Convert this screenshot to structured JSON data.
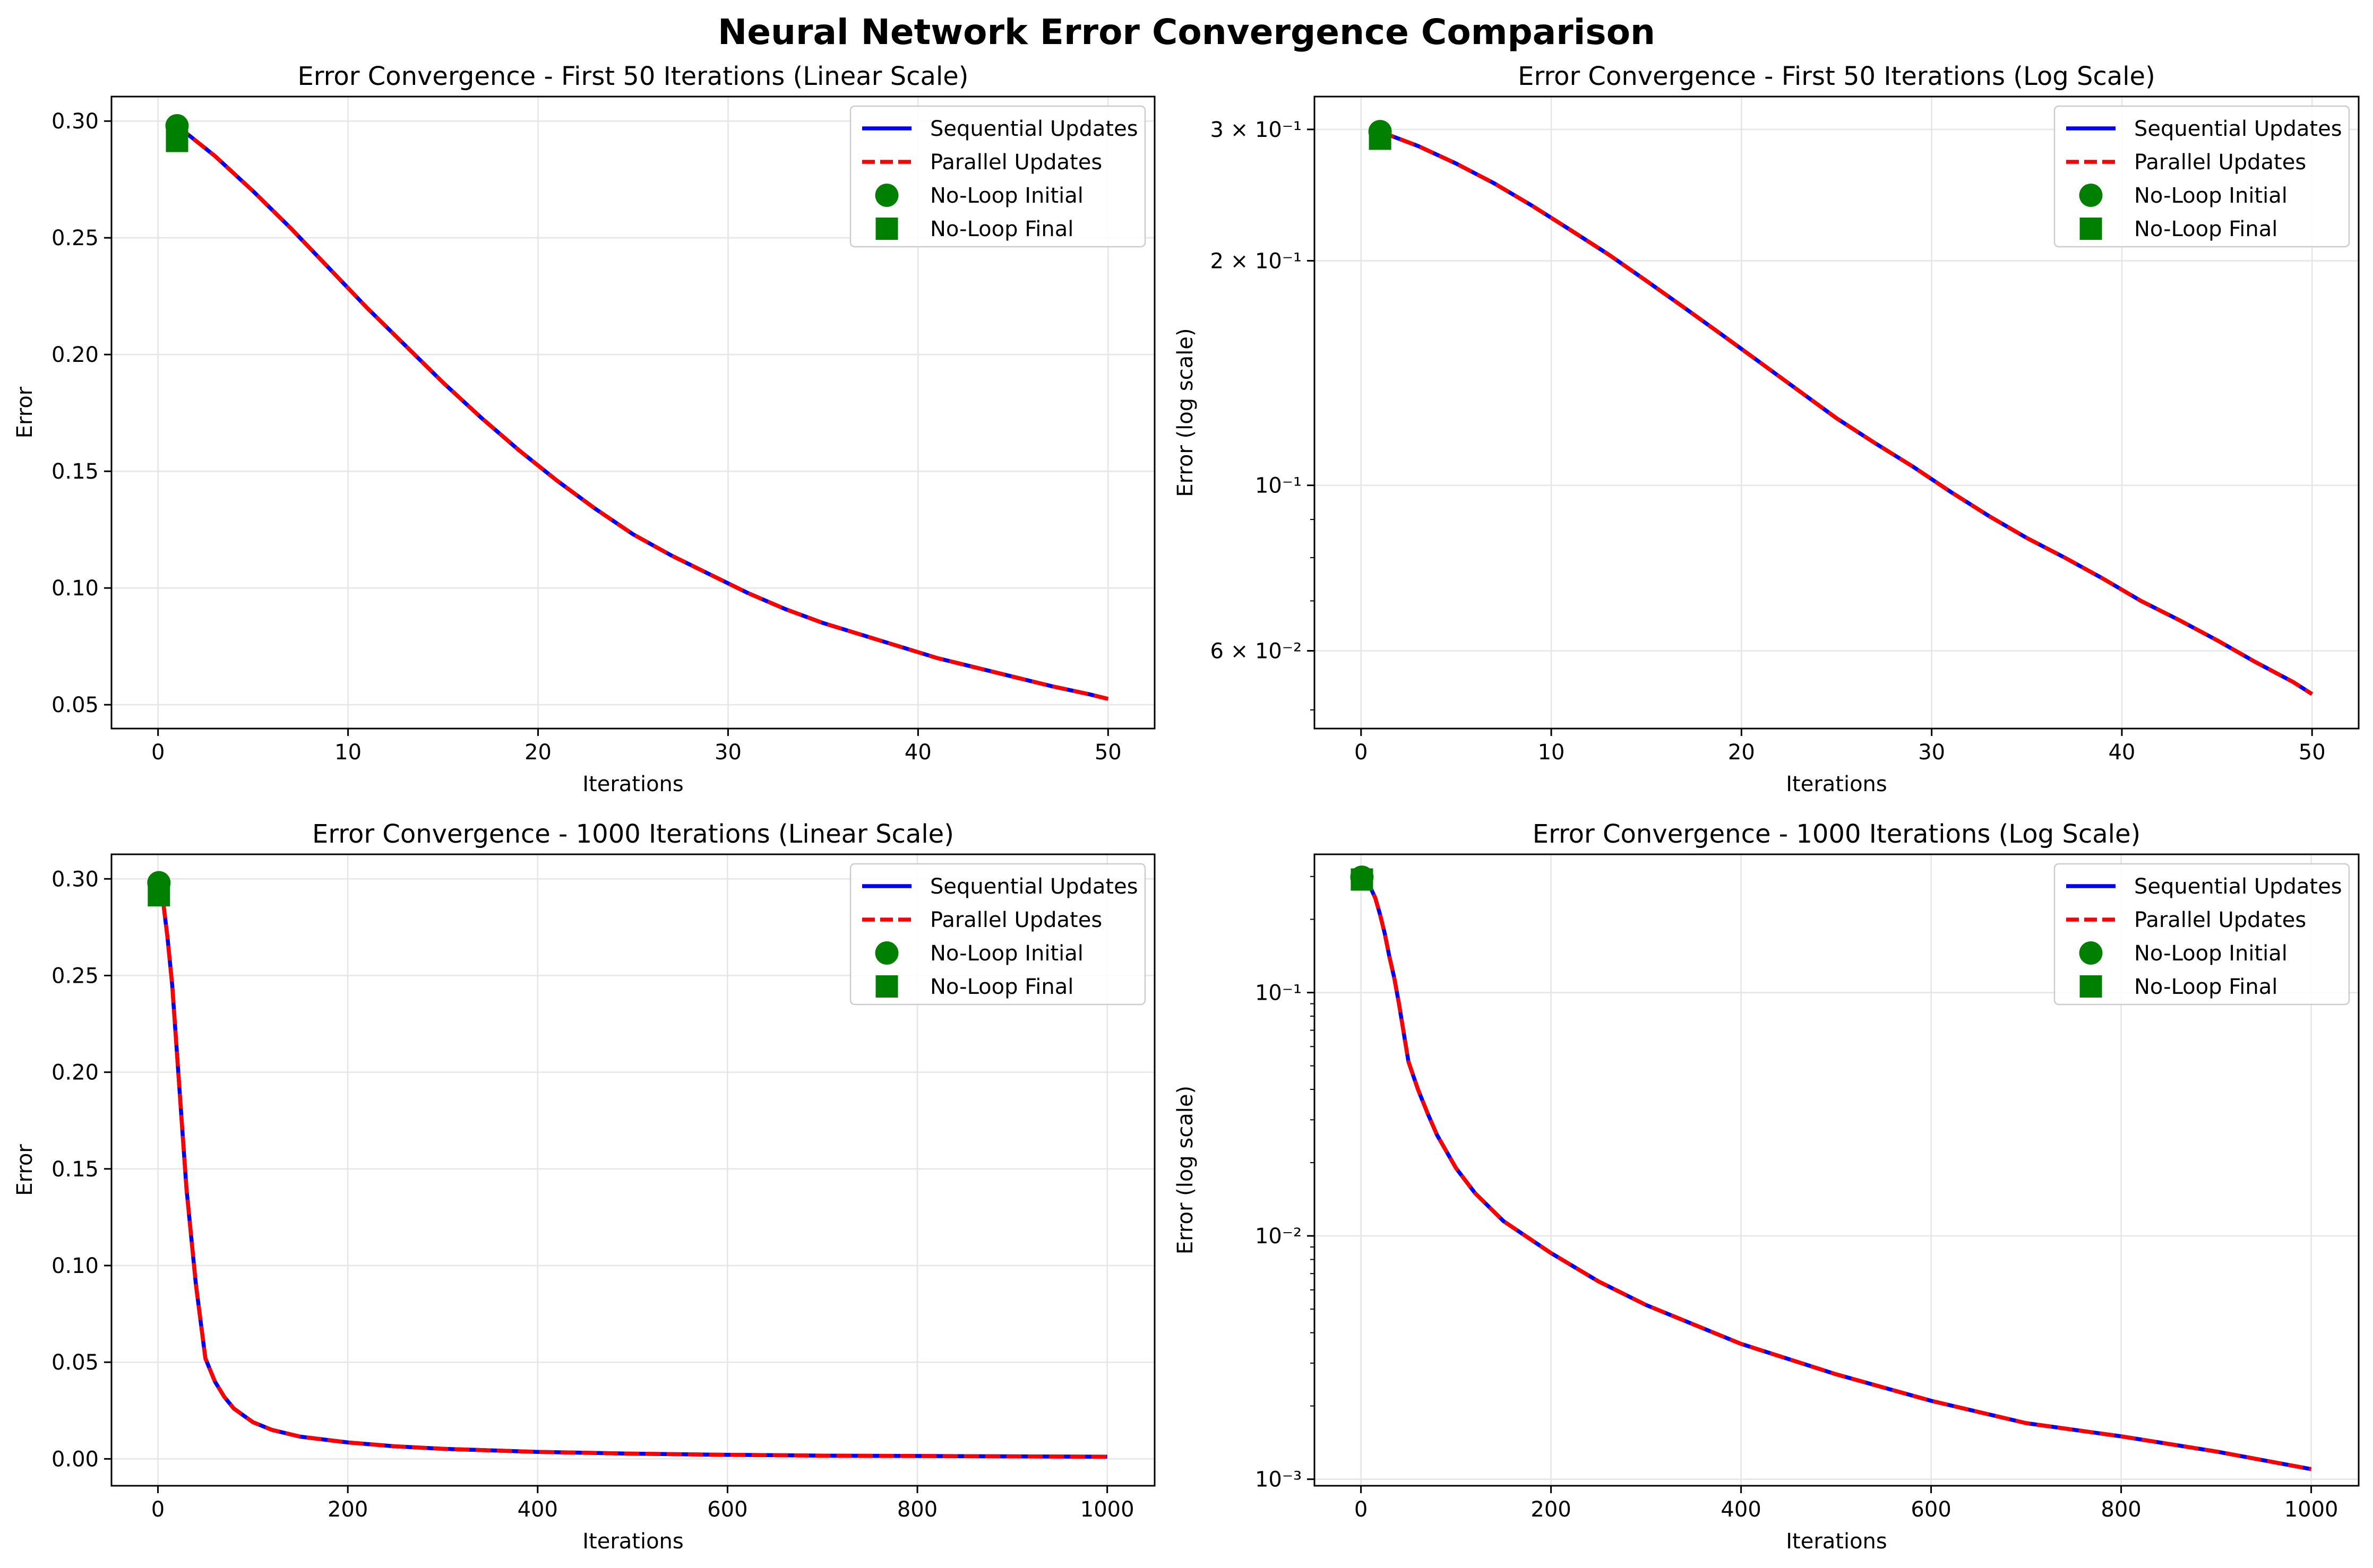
{
  "figure": {
    "title": "Neural Network Error Convergence Comparison"
  },
  "colors": {
    "sequential": "#0000ff",
    "parallel": "#ff0000",
    "noloop": "#008000",
    "grid": "#e6e6e6",
    "axis": "#000000"
  },
  "chart_data": [
    {
      "type": "line",
      "title": "Error Convergence - First 50 Iterations (Linear Scale)",
      "xlabel": "Iterations",
      "ylabel": "Error",
      "yscale": "linear",
      "xlim": [
        -2.45,
        52.45
      ],
      "ylim": [
        0.0398,
        0.3105
      ],
      "xticks": [
        0,
        10,
        20,
        30,
        40,
        50
      ],
      "xtick_labels": [
        "0",
        "10",
        "20",
        "30",
        "40",
        "50"
      ],
      "yticks": [
        0.05,
        0.1,
        0.15,
        0.2,
        0.25,
        0.3
      ],
      "ytick_labels": [
        "0.05",
        "0.10",
        "0.15",
        "0.20",
        "0.25",
        "0.30"
      ],
      "minor_yticks": [],
      "grid": true,
      "legend_position": "upper right",
      "legend": [
        "Sequential Updates",
        "Parallel Updates",
        "No-Loop Initial",
        "No-Loop Final"
      ],
      "series": [
        {
          "name": "Sequential Updates",
          "style": "solid",
          "x": [
            1,
            3,
            5,
            7,
            9,
            11,
            13,
            15,
            17,
            19,
            21,
            23,
            25,
            27,
            29,
            31,
            33,
            35,
            37,
            39,
            41,
            43,
            45,
            47,
            49,
            50
          ],
          "y": [
            0.298,
            0.285,
            0.27,
            0.254,
            0.237,
            0.22,
            0.204,
            0.188,
            0.173,
            0.159,
            0.146,
            0.134,
            0.123,
            0.114,
            0.106,
            0.098,
            0.091,
            0.085,
            0.08,
            0.075,
            0.07,
            0.066,
            0.062,
            0.058,
            0.0545,
            0.0525
          ]
        },
        {
          "name": "Parallel Updates",
          "style": "dashed",
          "x": [
            1,
            3,
            5,
            7,
            9,
            11,
            13,
            15,
            17,
            19,
            21,
            23,
            25,
            27,
            29,
            31,
            33,
            35,
            37,
            39,
            41,
            43,
            45,
            47,
            49,
            50
          ],
          "y": [
            0.298,
            0.285,
            0.27,
            0.254,
            0.237,
            0.22,
            0.204,
            0.188,
            0.173,
            0.159,
            0.146,
            0.134,
            0.123,
            0.114,
            0.106,
            0.098,
            0.091,
            0.085,
            0.08,
            0.075,
            0.07,
            0.066,
            0.062,
            0.058,
            0.0545,
            0.0525
          ]
        }
      ],
      "points": [
        {
          "name": "No-Loop Initial",
          "marker": "circle",
          "x": 1,
          "y": 0.298
        },
        {
          "name": "No-Loop Final",
          "marker": "square",
          "x": 1,
          "y": 0.2915
        }
      ]
    },
    {
      "type": "line",
      "title": "Error Convergence - First 50 Iterations (Log Scale)",
      "xlabel": "Iterations",
      "ylabel": "Error (log scale)",
      "yscale": "log",
      "xlim": [
        -2.45,
        52.45
      ],
      "ylim": [
        0.0472,
        0.332
      ],
      "xticks": [
        0,
        10,
        20,
        30,
        40,
        50
      ],
      "xtick_labels": [
        "0",
        "10",
        "20",
        "30",
        "40",
        "50"
      ],
      "yticks": [
        0.06,
        0.1,
        0.2,
        0.3
      ],
      "ytick_labels": [
        "6 × 10⁻²",
        "10⁻¹",
        "2 × 10⁻¹",
        "3 × 10⁻¹"
      ],
      "minor_yticks": [
        0.05,
        0.07,
        0.08,
        0.09
      ],
      "grid": true,
      "legend_position": "upper right",
      "legend": [
        "Sequential Updates",
        "Parallel Updates",
        "No-Loop Initial",
        "No-Loop Final"
      ],
      "series": [
        {
          "name": "Sequential Updates",
          "style": "solid",
          "x": [
            1,
            3,
            5,
            7,
            9,
            11,
            13,
            15,
            17,
            19,
            21,
            23,
            25,
            27,
            29,
            31,
            33,
            35,
            37,
            39,
            41,
            43,
            45,
            47,
            49,
            50
          ],
          "y": [
            0.298,
            0.285,
            0.27,
            0.254,
            0.237,
            0.22,
            0.204,
            0.188,
            0.173,
            0.159,
            0.146,
            0.134,
            0.123,
            0.114,
            0.106,
            0.098,
            0.091,
            0.085,
            0.08,
            0.075,
            0.07,
            0.066,
            0.062,
            0.058,
            0.0545,
            0.0525
          ]
        },
        {
          "name": "Parallel Updates",
          "style": "dashed",
          "x": [
            1,
            3,
            5,
            7,
            9,
            11,
            13,
            15,
            17,
            19,
            21,
            23,
            25,
            27,
            29,
            31,
            33,
            35,
            37,
            39,
            41,
            43,
            45,
            47,
            49,
            50
          ],
          "y": [
            0.298,
            0.285,
            0.27,
            0.254,
            0.237,
            0.22,
            0.204,
            0.188,
            0.173,
            0.159,
            0.146,
            0.134,
            0.123,
            0.114,
            0.106,
            0.098,
            0.091,
            0.085,
            0.08,
            0.075,
            0.07,
            0.066,
            0.062,
            0.058,
            0.0545,
            0.0525
          ]
        }
      ],
      "points": [
        {
          "name": "No-Loop Initial",
          "marker": "circle",
          "x": 1,
          "y": 0.298
        },
        {
          "name": "No-Loop Final",
          "marker": "square",
          "x": 1,
          "y": 0.2915
        }
      ]
    },
    {
      "type": "line",
      "title": "Error Convergence - 1000 Iterations (Linear Scale)",
      "xlabel": "Iterations",
      "ylabel": "Error",
      "yscale": "linear",
      "xlim": [
        -48.95,
        1049.95
      ],
      "ylim": [
        -0.0139,
        0.3127
      ],
      "xticks": [
        0,
        200,
        400,
        600,
        800,
        1000
      ],
      "xtick_labels": [
        "0",
        "200",
        "400",
        "600",
        "800",
        "1000"
      ],
      "yticks": [
        0.0,
        0.05,
        0.1,
        0.15,
        0.2,
        0.25,
        0.3
      ],
      "ytick_labels": [
        "0.00",
        "0.05",
        "0.10",
        "0.15",
        "0.20",
        "0.25",
        "0.30"
      ],
      "minor_yticks": [],
      "grid": true,
      "legend_position": "upper right",
      "legend": [
        "Sequential Updates",
        "Parallel Updates",
        "No-Loop Initial",
        "No-Loop Final"
      ],
      "series": [
        {
          "name": "Sequential Updates",
          "style": "solid",
          "x": [
            1,
            5,
            10,
            15,
            20,
            25,
            30,
            35,
            40,
            50,
            60,
            70,
            80,
            100,
            120,
            150,
            200,
            250,
            300,
            400,
            500,
            600,
            700,
            800,
            900,
            1000
          ],
          "y": [
            0.298,
            0.29,
            0.27,
            0.245,
            0.21,
            0.175,
            0.14,
            0.115,
            0.09,
            0.052,
            0.04,
            0.032,
            0.026,
            0.019,
            0.015,
            0.0115,
            0.0085,
            0.0065,
            0.0052,
            0.0036,
            0.0027,
            0.0021,
            0.0017,
            0.0015,
            0.0013,
            0.0011
          ]
        },
        {
          "name": "Parallel Updates",
          "style": "dashed",
          "x": [
            1,
            5,
            10,
            15,
            20,
            25,
            30,
            35,
            40,
            50,
            60,
            70,
            80,
            100,
            120,
            150,
            200,
            250,
            300,
            400,
            500,
            600,
            700,
            800,
            900,
            1000
          ],
          "y": [
            0.298,
            0.29,
            0.27,
            0.245,
            0.21,
            0.175,
            0.14,
            0.115,
            0.09,
            0.052,
            0.04,
            0.032,
            0.026,
            0.019,
            0.015,
            0.0115,
            0.0085,
            0.0065,
            0.0052,
            0.0036,
            0.0027,
            0.0021,
            0.0017,
            0.0015,
            0.0013,
            0.0011
          ]
        }
      ],
      "points": [
        {
          "name": "No-Loop Initial",
          "marker": "circle",
          "x": 1,
          "y": 0.298
        },
        {
          "name": "No-Loop Final",
          "marker": "square",
          "x": 1,
          "y": 0.2915
        }
      ]
    },
    {
      "type": "line",
      "title": "Error Convergence - 1000 Iterations (Log Scale)",
      "xlabel": "Iterations",
      "ylabel": "Error (log scale)",
      "yscale": "log",
      "xlim": [
        -48.95,
        1049.95
      ],
      "ylim": [
        0.00094,
        0.37
      ],
      "xticks": [
        0,
        200,
        400,
        600,
        800,
        1000
      ],
      "xtick_labels": [
        "0",
        "200",
        "400",
        "600",
        "800",
        "1000"
      ],
      "yticks": [
        0.001,
        0.01,
        0.1
      ],
      "ytick_labels": [
        "10⁻³",
        "10⁻²",
        "10⁻¹"
      ],
      "minor_yticks": [
        0.002,
        0.003,
        0.004,
        0.005,
        0.006,
        0.007,
        0.008,
        0.009,
        0.02,
        0.03,
        0.04,
        0.05,
        0.06,
        0.07,
        0.08,
        0.09,
        0.2,
        0.3
      ],
      "grid": true,
      "legend_position": "upper right",
      "legend": [
        "Sequential Updates",
        "Parallel Updates",
        "No-Loop Initial",
        "No-Loop Final"
      ],
      "series": [
        {
          "name": "Sequential Updates",
          "style": "solid",
          "x": [
            1,
            5,
            10,
            15,
            20,
            25,
            30,
            35,
            40,
            50,
            60,
            70,
            80,
            100,
            120,
            150,
            200,
            250,
            300,
            400,
            500,
            600,
            700,
            800,
            900,
            1000
          ],
          "y": [
            0.298,
            0.29,
            0.27,
            0.245,
            0.21,
            0.175,
            0.14,
            0.115,
            0.09,
            0.052,
            0.04,
            0.032,
            0.026,
            0.019,
            0.015,
            0.0115,
            0.0085,
            0.0065,
            0.0052,
            0.0036,
            0.0027,
            0.0021,
            0.0017,
            0.0015,
            0.0013,
            0.0011
          ]
        },
        {
          "name": "Parallel Updates",
          "style": "dashed",
          "x": [
            1,
            5,
            10,
            15,
            20,
            25,
            30,
            35,
            40,
            50,
            60,
            70,
            80,
            100,
            120,
            150,
            200,
            250,
            300,
            400,
            500,
            600,
            700,
            800,
            900,
            1000
          ],
          "y": [
            0.298,
            0.29,
            0.27,
            0.245,
            0.21,
            0.175,
            0.14,
            0.115,
            0.09,
            0.052,
            0.04,
            0.032,
            0.026,
            0.019,
            0.015,
            0.0115,
            0.0085,
            0.0065,
            0.0052,
            0.0036,
            0.0027,
            0.0021,
            0.0017,
            0.0015,
            0.0013,
            0.0011
          ]
        }
      ],
      "points": [
        {
          "name": "No-Loop Initial",
          "marker": "circle",
          "x": 1,
          "y": 0.298
        },
        {
          "name": "No-Loop Final",
          "marker": "square",
          "x": 1,
          "y": 0.2915
        }
      ]
    }
  ]
}
